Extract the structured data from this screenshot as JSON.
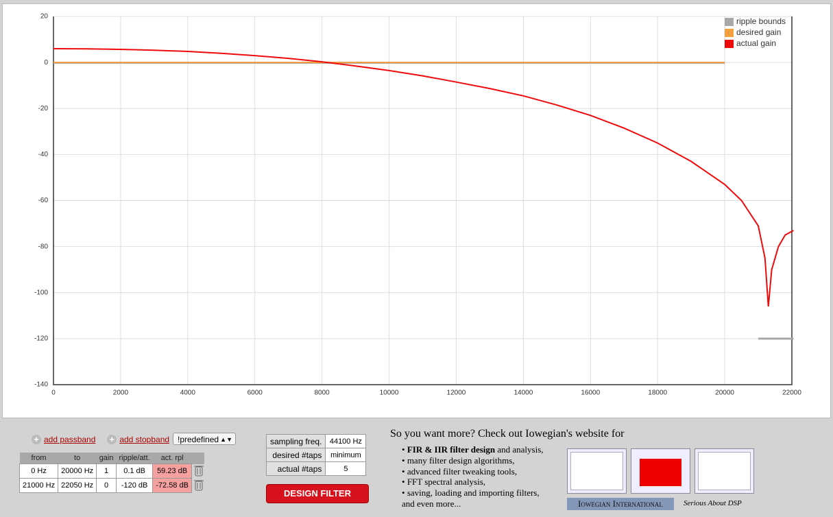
{
  "chart_data": {
    "type": "line",
    "xlim": [
      0,
      22000
    ],
    "xticks": [
      0,
      2000,
      4000,
      6000,
      8000,
      10000,
      12000,
      14000,
      16000,
      18000,
      20000,
      22000
    ],
    "ylim": [
      -140,
      20
    ],
    "yticks": [
      -140,
      -120,
      -100,
      -80,
      -60,
      -40,
      -20,
      0,
      20
    ],
    "grid": true,
    "legend": "top-right",
    "series": [
      {
        "name": "ripple bounds",
        "color": "#a8a8a8",
        "x": [
          0,
          20000,
          20500,
          21000,
          22050
        ],
        "values": [
          -0.1,
          -0.1,
          null,
          -120,
          -120
        ]
      },
      {
        "name": "desired gain",
        "color": "#f5a03c",
        "x": [
          0,
          20000
        ],
        "values": [
          0,
          0
        ]
      },
      {
        "name": "actual gain",
        "color": "#ee0a0a",
        "x": [
          0,
          1000,
          2000,
          3000,
          4000,
          5000,
          6000,
          7000,
          8000,
          9000,
          10000,
          11000,
          12000,
          13000,
          14000,
          15000,
          16000,
          17000,
          18000,
          19000,
          20000,
          20500,
          21000,
          21200,
          21300,
          21400,
          21600,
          21800,
          22050
        ],
        "values": [
          6,
          5.9,
          5.7,
          5.3,
          4.8,
          4,
          3,
          1.8,
          0.3,
          -1.5,
          -3.5,
          -5.8,
          -8.5,
          -11.3,
          -14.5,
          -18.5,
          -23,
          -28.5,
          -35,
          -43,
          -53,
          -60,
          -71,
          -85,
          -106,
          -90,
          -80,
          -75,
          -73
        ]
      }
    ]
  },
  "controls": {
    "add_passband": "add passband",
    "add_stopband": "add stopband",
    "predefined": "!predefined"
  },
  "bands_table": {
    "headers": [
      "from",
      "to",
      "gain",
      "ripple/att.",
      "act. rpl"
    ],
    "rows": [
      [
        "0 Hz",
        "20000 Hz",
        "1",
        "0.1 dB",
        "59.23 dB"
      ],
      [
        "21000 Hz",
        "22050 Hz",
        "0",
        "-120 dB",
        "-72.58 dB"
      ]
    ]
  },
  "settings_table": {
    "rows": [
      [
        "sampling freq.",
        "44100 Hz"
      ],
      [
        "desired #taps",
        "minimum"
      ],
      [
        "actual #taps",
        "5"
      ]
    ]
  },
  "design_button": "DESIGN FILTER",
  "promo": {
    "heading": "So you want more? Check out Iowegian's website for",
    "first_bold": "FIR & IIR filter design",
    "first_rest": " and analysis,",
    "items": [
      "many filter design algorithms,",
      "advanced filter tweaking tools,",
      "FFT spectral analysis,",
      "saving, loading and importing filters,"
    ],
    "more": "and even more...",
    "logo": "Iowegian International",
    "tagline": "Serious About DSP"
  }
}
